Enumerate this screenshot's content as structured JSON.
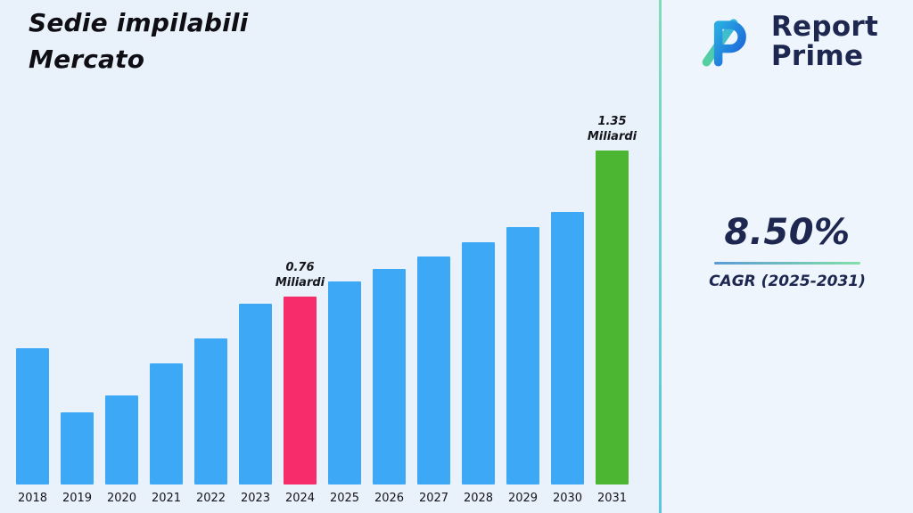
{
  "page": {
    "title": "Sedie impilabili\nMercato"
  },
  "logo": {
    "line1": "Report",
    "line2": "Prime"
  },
  "stats": {
    "cagr_value": "8.50%",
    "cagr_label": "CAGR (2025-2031)"
  },
  "colors": {
    "background_left": "#E9F1FA",
    "background_right": "#EEF5FC",
    "divider_top": "#7FDCB9",
    "divider_bottom": "#59C6E0",
    "brand_navy": "#1D2750",
    "bar_blue": "#3DA8F5",
    "bar_pink": "#F72C6B",
    "bar_green": "#4CB531"
  },
  "chart_data": {
    "type": "bar",
    "title": "Sedie impilabili Mercato",
    "unit": "Miliardi",
    "xlabel": "",
    "ylabel": "",
    "grid": false,
    "legend": false,
    "ylim": [
      0,
      1.45
    ],
    "categories": [
      "2018",
      "2019",
      "2020",
      "2021",
      "2022",
      "2023",
      "2024",
      "2025",
      "2026",
      "2027",
      "2028",
      "2029",
      "2030",
      "2031"
    ],
    "values": [
      0.55,
      0.29,
      0.36,
      0.49,
      0.59,
      0.73,
      0.76,
      0.82,
      0.87,
      0.92,
      0.98,
      1.04,
      1.1,
      1.35
    ],
    "bar_color": "#3DA8F5",
    "highlights": [
      {
        "category": "2024",
        "value": 0.76,
        "color": "#F72C6B",
        "label": "0.76\nMiliardi"
      },
      {
        "category": "2031",
        "value": 1.35,
        "color": "#4CB531",
        "label": "1.35\nMiliardi"
      }
    ],
    "annotation_note": "value labels shown only for 2024 and 2031"
  }
}
